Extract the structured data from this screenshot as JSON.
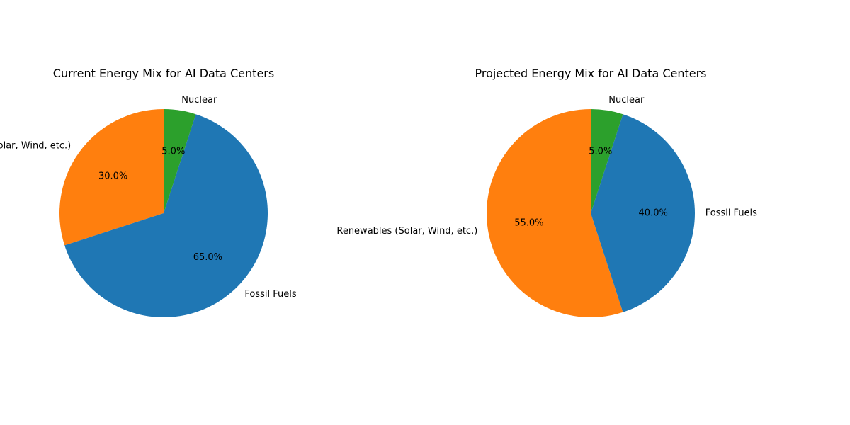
{
  "chart_data": [
    {
      "type": "pie",
      "title": "Current Energy Mix for AI Data Centers",
      "labels": [
        "Renewables (Solar, Wind, etc.)",
        "Fossil Fuels",
        "Nuclear"
      ],
      "values": [
        30.0,
        65.0,
        5.0
      ],
      "pct_labels": [
        "30.0%",
        "65.0%",
        "5.0%"
      ],
      "colors": [
        "#ff7f0e",
        "#1f77b4",
        "#2ca02c"
      ],
      "start_angle_deg": 90,
      "direction": "counterclockwise",
      "legend": "none"
    },
    {
      "type": "pie",
      "title": "Projected Energy Mix for AI Data Centers",
      "labels": [
        "Renewables (Solar, Wind, etc.)",
        "Fossil Fuels",
        "Nuclear"
      ],
      "values": [
        55.0,
        40.0,
        5.0
      ],
      "pct_labels": [
        "55.0%",
        "40.0%",
        "5.0%"
      ],
      "colors": [
        "#ff7f0e",
        "#1f77b4",
        "#2ca02c"
      ],
      "start_angle_deg": 90,
      "direction": "counterclockwise",
      "legend": "none"
    }
  ]
}
